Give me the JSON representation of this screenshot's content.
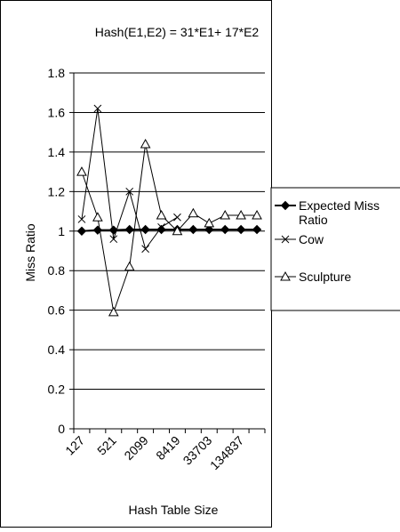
{
  "chart_data": {
    "type": "line",
    "title": "Hash(E1,E2) = 31*E1+ 17*E2",
    "xlabel": "Hash Table Size",
    "ylabel": "Miss Ratio",
    "ylim": [
      0,
      1.8
    ],
    "y_ticks": [
      "0",
      "0.2",
      "0.4",
      "0.6",
      "0.8",
      "1",
      "1.2",
      "1.4",
      "1.6",
      "1.8"
    ],
    "grid": "horizontal",
    "legend_position": "right",
    "categories": [
      "127",
      "",
      "521",
      "",
      "2099",
      "",
      "8419",
      "",
      "33703",
      "",
      "134837",
      ""
    ],
    "series": [
      {
        "name": "Expected Miss Ratio",
        "marker": "diamond",
        "values": [
          1.0,
          1.005,
          1.005,
          1.008,
          1.008,
          1.008,
          1.008,
          1.008,
          1.008,
          1.008,
          1.008,
          1.008
        ]
      },
      {
        "name": "Cow",
        "marker": "x",
        "values": [
          1.06,
          1.62,
          0.96,
          1.2,
          0.91,
          1.02,
          1.07,
          null,
          null,
          null,
          null,
          null
        ]
      },
      {
        "name": "Sculpture",
        "marker": "triangle",
        "values": [
          1.3,
          1.07,
          0.59,
          0.82,
          1.44,
          1.08,
          1.0,
          1.09,
          1.04,
          1.08,
          1.08,
          1.08
        ]
      }
    ]
  }
}
